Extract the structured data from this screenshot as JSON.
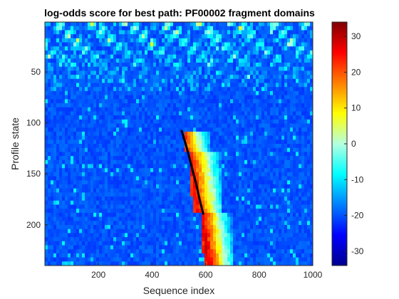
{
  "chart_data": {
    "type": "heatmap",
    "title": "log-odds score for best path: PF00002 fragment domains",
    "xlabel": "Sequence index",
    "ylabel": "Profile state",
    "xlim": [
      0,
      1000
    ],
    "ylim": [
      240,
      1
    ],
    "y_reversed": true,
    "x_ticks": [
      200,
      400,
      600,
      800,
      1000
    ],
    "y_ticks": [
      50,
      100,
      150,
      200
    ],
    "colormap": "jet",
    "colorbar": {
      "range": [
        -34,
        34
      ],
      "ticks": [
        30,
        20,
        10,
        0,
        -10,
        -20,
        -30
      ]
    },
    "background_score": -20,
    "best_path": [
      [
        510,
        107
      ],
      [
        530,
        125
      ],
      [
        550,
        145
      ],
      [
        565,
        160
      ],
      [
        580,
        178
      ],
      [
        592,
        190
      ]
    ],
    "high_score_regions": [
      {
        "x": [
          520,
          620
        ],
        "y": [
          108,
          130
        ],
        "score": 22
      },
      {
        "x": [
          540,
          660
        ],
        "y": [
          130,
          190
        ],
        "score": 26
      },
      {
        "x": [
          585,
          700
        ],
        "y": [
          190,
          240
        ],
        "score": 28
      }
    ]
  }
}
